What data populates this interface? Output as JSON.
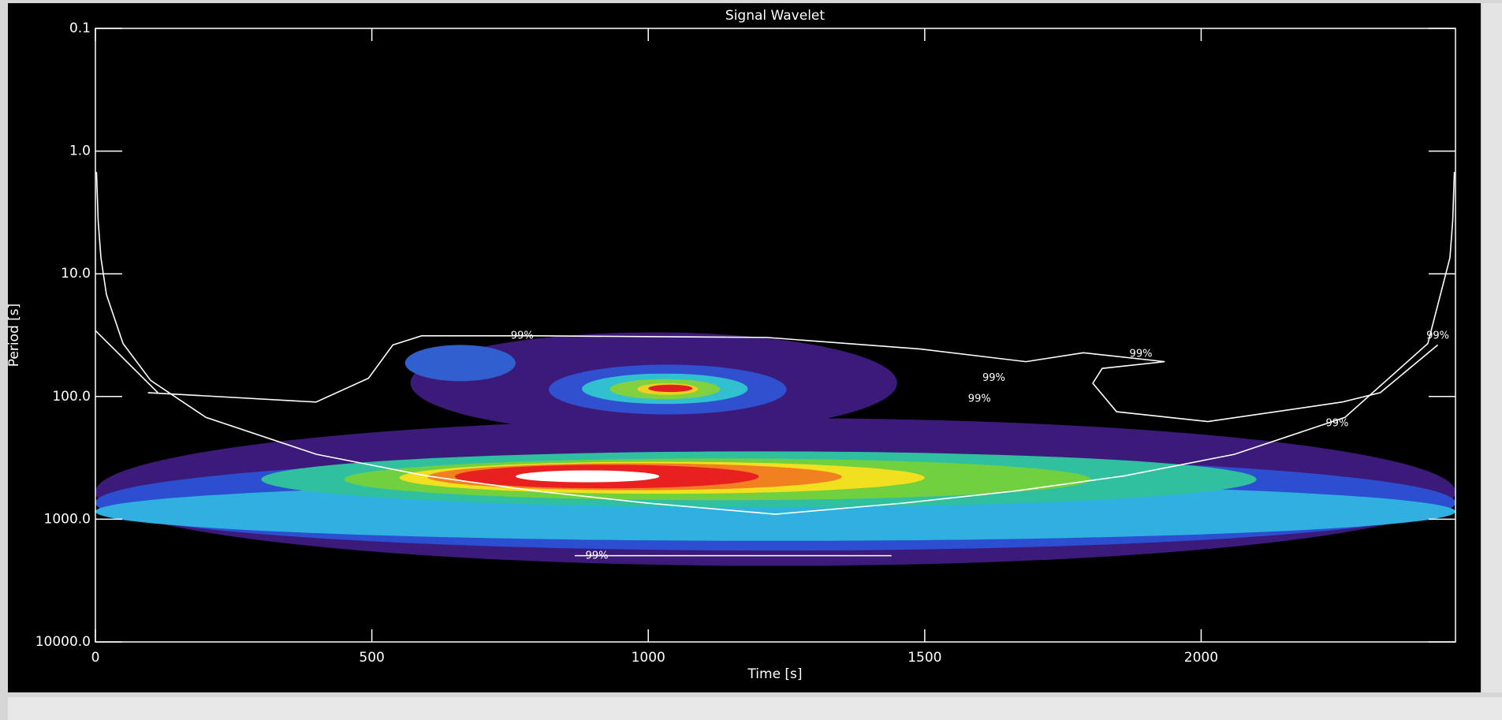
{
  "chart_data": {
    "type": "wavelet",
    "title": "Signal Wavelet",
    "x_label": "Time [s]",
    "y_label": "Period [s]",
    "xlim": [
      0,
      2460
    ],
    "xticks": [
      0,
      500,
      1000,
      1500,
      2000
    ],
    "ylim": [
      0.1,
      10000
    ],
    "y_log": true,
    "y_inverted": true,
    "yticks": [
      0.1,
      {
        "value": 1,
        "label": "1.0"
      },
      {
        "value": 10,
        "label": "10.0"
      },
      {
        "value": 100,
        "label": "100.0"
      },
      {
        "value": 1000,
        "label": "1000.0"
      },
      {
        "value": 10000,
        "label": "10000.0"
      }
    ],
    "background": "#000000",
    "line_color": "#ffffff",
    "regions": [
      {
        "x": [
          0,
          2460
        ],
        "period": [
          150,
          2400
        ],
        "color": "#3b1a7a"
      },
      {
        "x": [
          0,
          2460
        ],
        "period": [
          300,
          1800
        ],
        "color": "#2b4fd0"
      },
      {
        "x": [
          0,
          2460
        ],
        "period": [
          500,
          1500
        ],
        "color": "#2fb0e0"
      },
      {
        "x": [
          300,
          2100
        ],
        "period": [
          280,
          800
        ],
        "color": "#30c0a0"
      },
      {
        "x": [
          450,
          1800
        ],
        "period": [
          320,
          700
        ],
        "color": "#70d040"
      },
      {
        "x": [
          550,
          1500
        ],
        "period": [
          340,
          620
        ],
        "color": "#f0e020"
      },
      {
        "x": [
          600,
          1350
        ],
        "period": [
          350,
          580
        ],
        "color": "#f08020"
      },
      {
        "x": [
          650,
          1200
        ],
        "period": [
          360,
          560
        ],
        "color": "#e82020"
      },
      {
        "x": [
          760,
          1020
        ],
        "period": [
          400,
          500
        ],
        "color": "#ffffff"
      },
      {
        "x": [
          570,
          1450
        ],
        "period": [
          30,
          200
        ],
        "color": "#3b1a7a"
      },
      {
        "x": [
          560,
          760
        ],
        "period": [
          38,
          75
        ],
        "color": "#3060d0"
      },
      {
        "x": [
          820,
          1250
        ],
        "period": [
          55,
          140
        ],
        "color": "#3050d0"
      },
      {
        "x": [
          880,
          1180
        ],
        "period": [
          65,
          115
        ],
        "color": "#30c0d0"
      },
      {
        "x": [
          930,
          1130
        ],
        "period": [
          72,
          105
        ],
        "color": "#80d040"
      },
      {
        "x": [
          980,
          1090
        ],
        "period": [
          78,
          97
        ],
        "color": "#f0d020"
      },
      {
        "x": [
          1000,
          1080
        ],
        "period": [
          80,
          92
        ],
        "color": "#e02020"
      }
    ],
    "cone": {
      "x": [
        2,
        5,
        10,
        20,
        50,
        100,
        200,
        400,
        600,
        800,
        1000,
        1230,
        1460,
        1660,
        1860,
        2060,
        2260,
        2410,
        2450,
        2455,
        2458
      ],
      "period": [
        1.48,
        3.7,
        7.4,
        14.8,
        37,
        74,
        148,
        296,
        444,
        592,
        740,
        910,
        740,
        592,
        444,
        296,
        148,
        37,
        7.4,
        3.7,
        1.48
      ]
    },
    "contours": [
      {
        "x": [
          95,
          399,
          494,
          538,
          590,
          798,
          1214,
          1492,
          1683,
          1787,
          1934,
          1821,
          1804,
          1847,
          2012,
          2255,
          2324,
          2428
        ],
        "period": [
          93,
          111,
          71,
          38,
          32,
          32,
          33,
          41,
          52,
          44,
          52,
          59,
          78,
          133,
          160,
          111,
          93,
          38
        ]
      },
      {
        "x": [
          0,
          113
        ],
        "period": [
          29,
          93
        ]
      },
      {
        "x": [
          867,
          1440
        ],
        "period": [
          1982,
          1982
        ]
      }
    ],
    "annotations": [
      {
        "text": "99%",
        "x": 772,
        "period": 32
      },
      {
        "text": "99%",
        "x": 1891,
        "period": 45
      },
      {
        "text": "99%",
        "x": 1625,
        "period": 71
      },
      {
        "text": "99%",
        "x": 1599,
        "period": 105
      },
      {
        "text": "99%",
        "x": 2428,
        "period": 32
      },
      {
        "text": "99%",
        "x": 2246,
        "period": 166
      },
      {
        "text": "99%",
        "x": 907,
        "period": 1990
      }
    ]
  }
}
